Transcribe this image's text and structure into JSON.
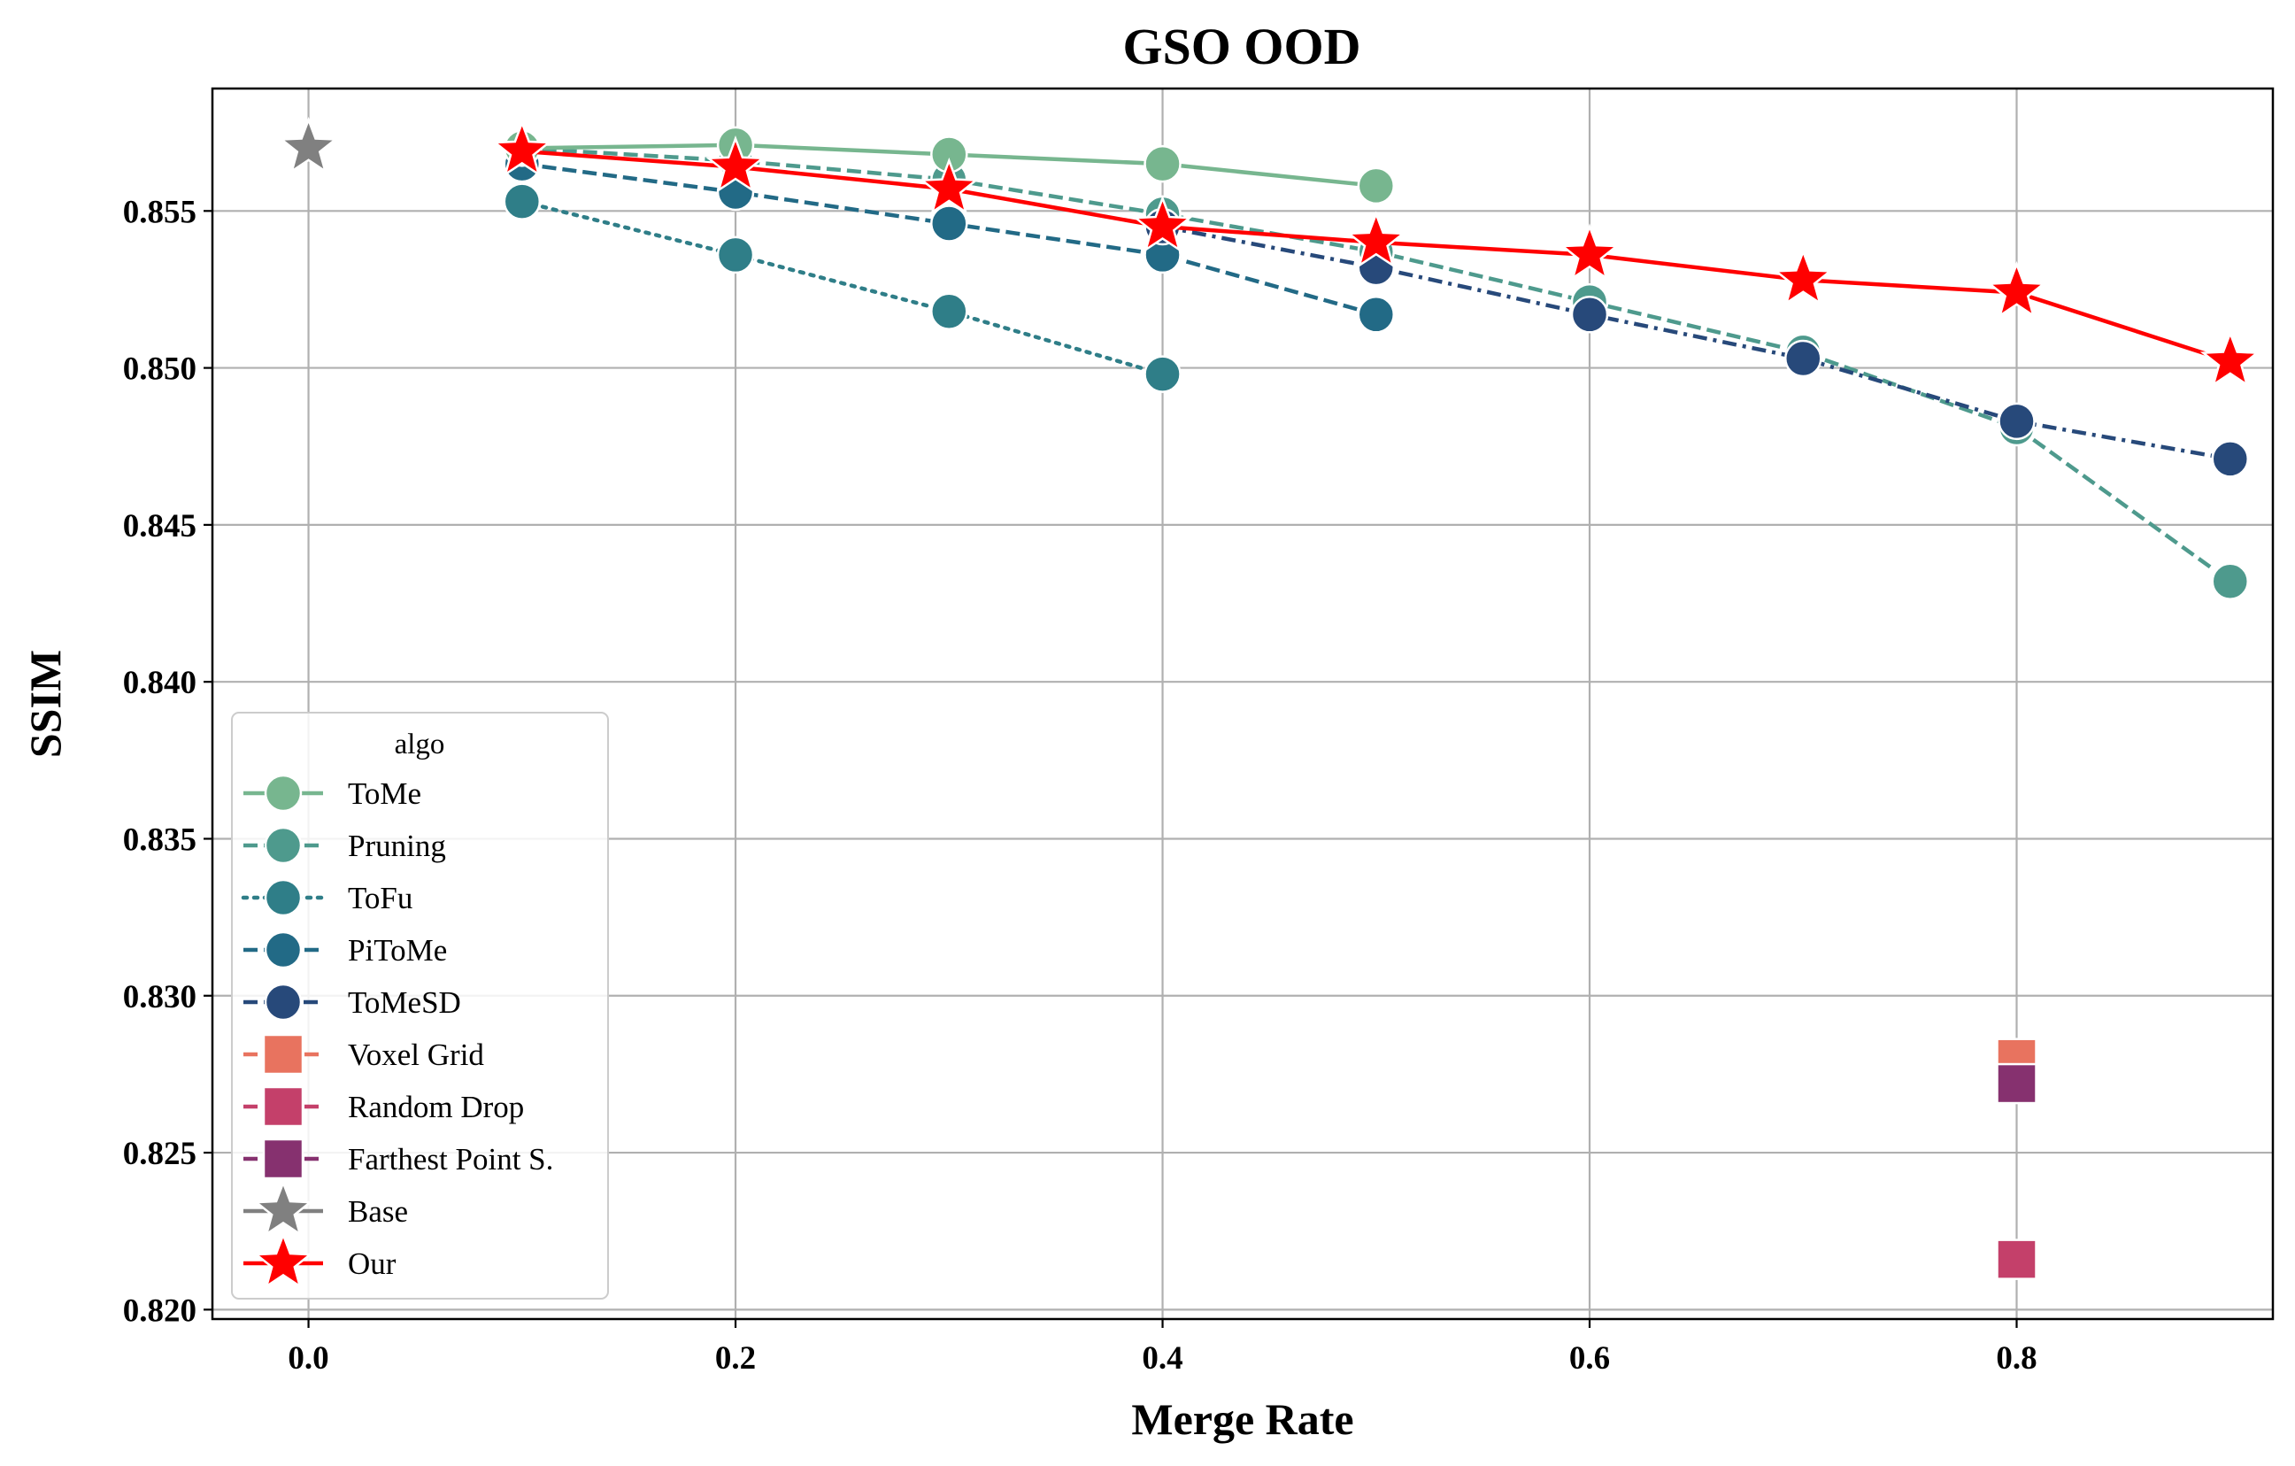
{
  "chart_data": {
    "type": "line",
    "title": "GSO OOD",
    "xlabel": "Merge Rate",
    "ylabel": "SSIM",
    "xlim": [
      -0.045,
      0.92
    ],
    "ylim": [
      0.8197,
      0.8589
    ],
    "xticks": [
      0.0,
      0.2,
      0.4,
      0.6,
      0.8
    ],
    "xtick_labels": [
      "0.0",
      "0.2",
      "0.4",
      "0.6",
      "0.8"
    ],
    "yticks": [
      0.82,
      0.825,
      0.83,
      0.835,
      0.84,
      0.845,
      0.85,
      0.855
    ],
    "ytick_labels": [
      "0.820",
      "0.825",
      "0.830",
      "0.835",
      "0.840",
      "0.845",
      "0.850",
      "0.855"
    ],
    "grid": true,
    "legend": {
      "title": "algo",
      "position": "lower-left"
    },
    "series": [
      {
        "name": "ToMe",
        "color": "#77b68f",
        "dash": "solid",
        "marker": "circle",
        "x": [
          0.1,
          0.2,
          0.3,
          0.4,
          0.5
        ],
        "y": [
          0.857,
          0.8571,
          0.8568,
          0.8565,
          0.8558
        ]
      },
      {
        "name": "Pruning",
        "color": "#4e9a8d",
        "dash": "dashed",
        "marker": "circle",
        "x": [
          0.1,
          0.2,
          0.3,
          0.4,
          0.5,
          0.6,
          0.7,
          0.8,
          0.9
        ],
        "y": [
          0.857,
          0.8566,
          0.856,
          0.8549,
          0.8537,
          0.8521,
          0.8505,
          0.8481,
          0.8432
        ]
      },
      {
        "name": "ToFu",
        "color": "#2f7e88",
        "dash": "dotted",
        "marker": "circle",
        "x": [
          0.1,
          0.2,
          0.3,
          0.4
        ],
        "y": [
          0.8553,
          0.8536,
          0.8518,
          0.8498
        ]
      },
      {
        "name": "PiToMe",
        "color": "#226a86",
        "dash": "dashed",
        "marker": "circle",
        "x": [
          0.1,
          0.2,
          0.3,
          0.4,
          0.5
        ],
        "y": [
          0.8565,
          0.8556,
          0.8546,
          0.8536,
          0.8517
        ]
      },
      {
        "name": "ToMeSD",
        "color": "#27497a",
        "dash": "dashdot",
        "marker": "circle",
        "x": [
          0.4,
          0.5,
          0.6,
          0.7,
          0.8,
          0.9
        ],
        "y": [
          0.8545,
          0.8532,
          0.8517,
          0.8503,
          0.8483,
          0.8471
        ]
      },
      {
        "name": "Voxel Grid",
        "color": "#e8735f",
        "dash": "dashed",
        "marker": "square",
        "x": [
          0.8
        ],
        "y": [
          0.828
        ]
      },
      {
        "name": "Random Drop",
        "color": "#c4406a",
        "dash": "dashed",
        "marker": "square",
        "x": [
          0.8
        ],
        "y": [
          0.8216
        ]
      },
      {
        "name": "Farthest Point S.",
        "color": "#86316f",
        "dash": "dashed",
        "marker": "square",
        "x": [
          0.8
        ],
        "y": [
          0.8272
        ]
      },
      {
        "name": "Base",
        "color": "#808080",
        "dash": "solid",
        "marker": "star",
        "x": [
          0.0
        ],
        "y": [
          0.857
        ]
      },
      {
        "name": "Our",
        "color": "#ff0000",
        "dash": "solid",
        "marker": "star",
        "x": [
          0.1,
          0.2,
          0.3,
          0.4,
          0.5,
          0.6,
          0.7,
          0.8,
          0.9
        ],
        "y": [
          0.8569,
          0.8564,
          0.8557,
          0.8545,
          0.854,
          0.8536,
          0.8528,
          0.8524,
          0.8502
        ]
      }
    ]
  }
}
